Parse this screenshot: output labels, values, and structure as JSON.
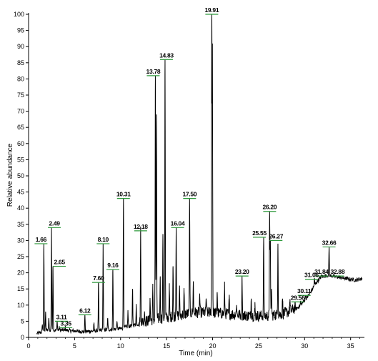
{
  "chart_data": {
    "type": "line",
    "title": "",
    "xlabel": "Time (min)",
    "ylabel": "Relative abundance",
    "xlim": [
      0,
      36.5
    ],
    "ylim": [
      0,
      100
    ],
    "x_ticks": [
      0,
      5,
      10,
      15,
      20,
      25,
      30,
      35
    ],
    "y_ticks": [
      0,
      5,
      10,
      15,
      20,
      25,
      30,
      35,
      40,
      45,
      50,
      55,
      60,
      65,
      70,
      75,
      80,
      85,
      90,
      95,
      100
    ],
    "grid": false,
    "line_color": "#000000",
    "marker_color": "#2e9a3c",
    "peaks": [
      {
        "rt": 1.66,
        "label": "1.66",
        "height": 29
      },
      {
        "rt": 2.49,
        "label": "2.49",
        "height": 34
      },
      {
        "rt": 2.65,
        "label": "2.65",
        "height": 22
      },
      {
        "rt": 3.11,
        "label": "3.11",
        "height": 5
      },
      {
        "rt": 3.35,
        "label": "3.35",
        "height": 3
      },
      {
        "rt": 6.12,
        "label": "6.12",
        "height": 7
      },
      {
        "rt": 7.6,
        "label": "7.60",
        "height": 17
      },
      {
        "rt": 8.1,
        "label": "8.10",
        "height": 29
      },
      {
        "rt": 9.16,
        "label": "9.16",
        "height": 21
      },
      {
        "rt": 10.31,
        "label": "10.31",
        "height": 43
      },
      {
        "rt": 12.18,
        "label": "12.18",
        "height": 33
      },
      {
        "rt": 13.78,
        "label": "13.78",
        "height": 81
      },
      {
        "rt": 14.83,
        "label": "14.83",
        "height": 86
      },
      {
        "rt": 16.04,
        "label": "16.04",
        "height": 34
      },
      {
        "rt": 17.5,
        "label": "17.50",
        "height": 43
      },
      {
        "rt": 19.91,
        "label": "19.91",
        "height": 100
      },
      {
        "rt": 23.2,
        "label": "23.20",
        "height": 19
      },
      {
        "rt": 25.55,
        "label": "25.55",
        "height": 31
      },
      {
        "rt": 26.2,
        "label": "26.20",
        "height": 39
      },
      {
        "rt": 26.27,
        "label": "26.27",
        "height": 30
      },
      {
        "rt": 29.56,
        "label": "29.56",
        "height": 11
      },
      {
        "rt": 30.11,
        "label": "30.11",
        "height": 13
      },
      {
        "rt": 31.06,
        "label": "31.06",
        "height": 18
      },
      {
        "rt": 31.84,
        "label": "31.84",
        "height": 19
      },
      {
        "rt": 32.66,
        "label": "32.66",
        "height": 28
      },
      {
        "rt": 32.88,
        "label": "32.88",
        "height": 19
      }
    ],
    "minor_peaks": [
      {
        "rt": 1.5,
        "height": 4
      },
      {
        "rt": 1.85,
        "height": 8
      },
      {
        "rt": 2.2,
        "height": 6
      },
      {
        "rt": 4.0,
        "height": 3
      },
      {
        "rt": 5.2,
        "height": 2
      },
      {
        "rt": 7.1,
        "height": 4
      },
      {
        "rt": 8.6,
        "height": 6
      },
      {
        "rt": 9.6,
        "height": 5
      },
      {
        "rt": 10.8,
        "height": 8
      },
      {
        "rt": 11.3,
        "height": 15
      },
      {
        "rt": 11.7,
        "height": 10
      },
      {
        "rt": 12.6,
        "height": 8
      },
      {
        "rt": 13.2,
        "height": 12
      },
      {
        "rt": 13.5,
        "height": 15
      },
      {
        "rt": 13.9,
        "height": 69
      },
      {
        "rt": 14.3,
        "height": 18
      },
      {
        "rt": 14.6,
        "height": 32
      },
      {
        "rt": 15.3,
        "height": 15
      },
      {
        "rt": 15.7,
        "height": 22
      },
      {
        "rt": 16.4,
        "height": 15
      },
      {
        "rt": 16.9,
        "height": 14
      },
      {
        "rt": 17.9,
        "height": 17
      },
      {
        "rt": 18.6,
        "height": 13
      },
      {
        "rt": 19.3,
        "height": 12
      },
      {
        "rt": 19.98,
        "height": 90
      },
      {
        "rt": 20.5,
        "height": 14
      },
      {
        "rt": 21.3,
        "height": 15
      },
      {
        "rt": 21.8,
        "height": 12
      },
      {
        "rt": 22.6,
        "height": 10
      },
      {
        "rt": 24.2,
        "height": 12
      },
      {
        "rt": 24.6,
        "height": 9
      },
      {
        "rt": 26.4,
        "height": 15
      },
      {
        "rt": 27.1,
        "height": 29
      },
      {
        "rt": 27.6,
        "height": 12
      },
      {
        "rt": 28.4,
        "height": 11
      }
    ],
    "baseline": [
      [
        0,
        0.5
      ],
      [
        1.0,
        1
      ],
      [
        2.0,
        2
      ],
      [
        4.0,
        2
      ],
      [
        6.0,
        1.5
      ],
      [
        8.0,
        2
      ],
      [
        10.0,
        2.5
      ],
      [
        12.0,
        4
      ],
      [
        14.0,
        5
      ],
      [
        16.0,
        6
      ],
      [
        18.0,
        7
      ],
      [
        20.0,
        7
      ],
      [
        22.0,
        6.5
      ],
      [
        24.0,
        6
      ],
      [
        26.0,
        6
      ],
      [
        27.5,
        6.5
      ],
      [
        28.5,
        7.5
      ],
      [
        29.5,
        9.5
      ],
      [
        30.5,
        13
      ],
      [
        31.2,
        16.5
      ],
      [
        31.8,
        18.5
      ],
      [
        32.5,
        19
      ],
      [
        33.5,
        18.5
      ],
      [
        34.5,
        18
      ],
      [
        35.5,
        17.5
      ],
      [
        36.3,
        18
      ]
    ]
  }
}
